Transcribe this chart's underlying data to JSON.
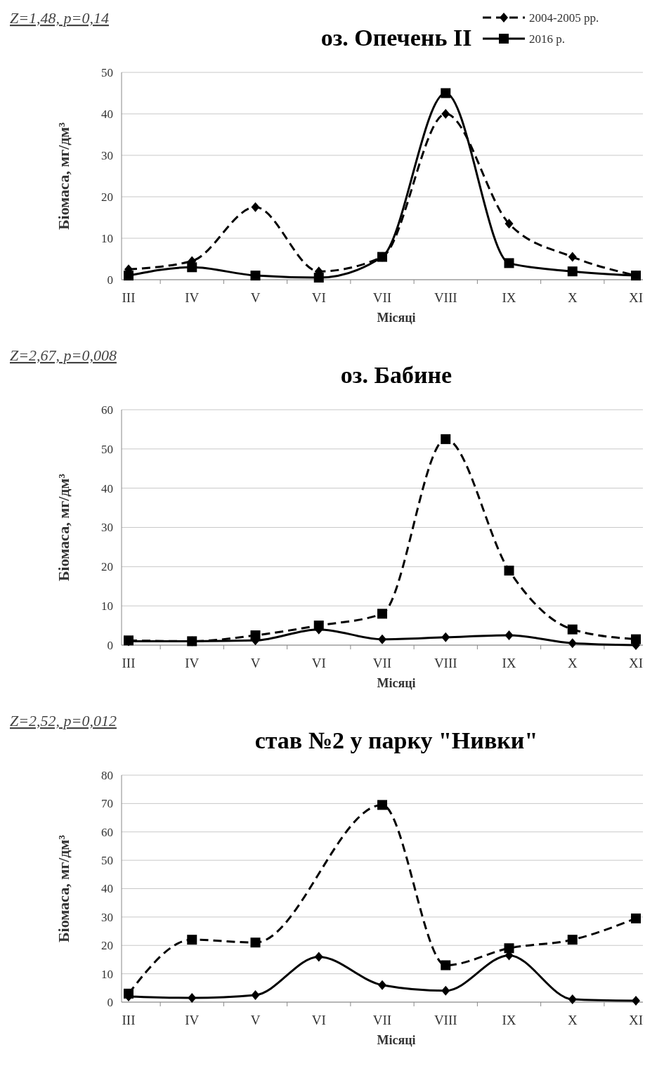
{
  "chart_data": [
    {
      "type": "line",
      "title": "оз. Опечень ІІ",
      "xlabel": "Місяці",
      "ylabel": "Біомаса, мг/дм³",
      "annotations": [
        "Z=1,48, p=0,14"
      ],
      "categories": [
        "ІІІ",
        "IV",
        "V",
        "VI",
        "VII",
        "VIII",
        "IX",
        "X",
        "XI"
      ],
      "ylim": [
        0,
        50
      ],
      "yticks": [
        0,
        10,
        20,
        30,
        40,
        50
      ],
      "grid": "y",
      "legend": "top right",
      "series": [
        {
          "name": "2004-2005 рр.",
          "color": "#000000",
          "marker": "diamond",
          "line_style": "dashed",
          "values": [
            2.5,
            4.5,
            17.5,
            2,
            5.5,
            40,
            13.5,
            5.5,
            1
          ]
        },
        {
          "name": "2016 р.",
          "color": "#000000",
          "marker": "square",
          "line_style": "solid",
          "values": [
            1,
            3,
            1,
            0.5,
            5.5,
            45,
            4,
            2,
            1
          ]
        }
      ]
    },
    {
      "type": "line",
      "title": "оз. Бабине",
      "xlabel": "Місяці",
      "ylabel": "Біомаса, мг/дм³",
      "annotations": [
        "Z=2,67, p=0,008"
      ],
      "categories": [
        "ІІІ",
        "IV",
        "V",
        "VI",
        "VII",
        "VIII",
        "IX",
        "X",
        "XI"
      ],
      "ylim": [
        0,
        60
      ],
      "yticks": [
        0,
        10,
        20,
        30,
        40,
        50,
        60
      ],
      "grid": "y",
      "series": [
        {
          "color": "#000000",
          "marker": "square",
          "line_style": "dashed",
          "values": [
            1.2,
            1,
            2.5,
            5,
            8,
            52.5,
            19,
            4,
            1.5
          ]
        },
        {
          "color": "#000000",
          "marker": "diamond",
          "line_style": "solid",
          "values": [
            1,
            1,
            1.2,
            4,
            1.5,
            2,
            2.5,
            0.5,
            0
          ]
        }
      ]
    },
    {
      "type": "line",
      "title": "став №2 у парку \"Нивки\"",
      "xlabel": "Місяці",
      "ylabel": "Біомаса, мг/дм³",
      "annotations": [
        "Z=2,52, p=0,012"
      ],
      "categories": [
        "ІІІ",
        "IV",
        "V",
        "VI",
        "VII",
        "VIII",
        "IX",
        "X",
        "XI"
      ],
      "ylim": [
        0,
        80
      ],
      "yticks": [
        0,
        10,
        20,
        30,
        40,
        50,
        60,
        70,
        80
      ],
      "grid": "y",
      "series": [
        {
          "color": "#000000",
          "marker": "square",
          "line_style": "dashed",
          "values": [
            3,
            22,
            21,
            null,
            69.5,
            13,
            19,
            22,
            29.5
          ]
        },
        {
          "color": "#000000",
          "marker": "diamond",
          "line_style": "solid",
          "values": [
            2,
            1.5,
            2.5,
            16,
            6,
            4,
            16.5,
            1,
            0.5
          ]
        }
      ]
    }
  ]
}
